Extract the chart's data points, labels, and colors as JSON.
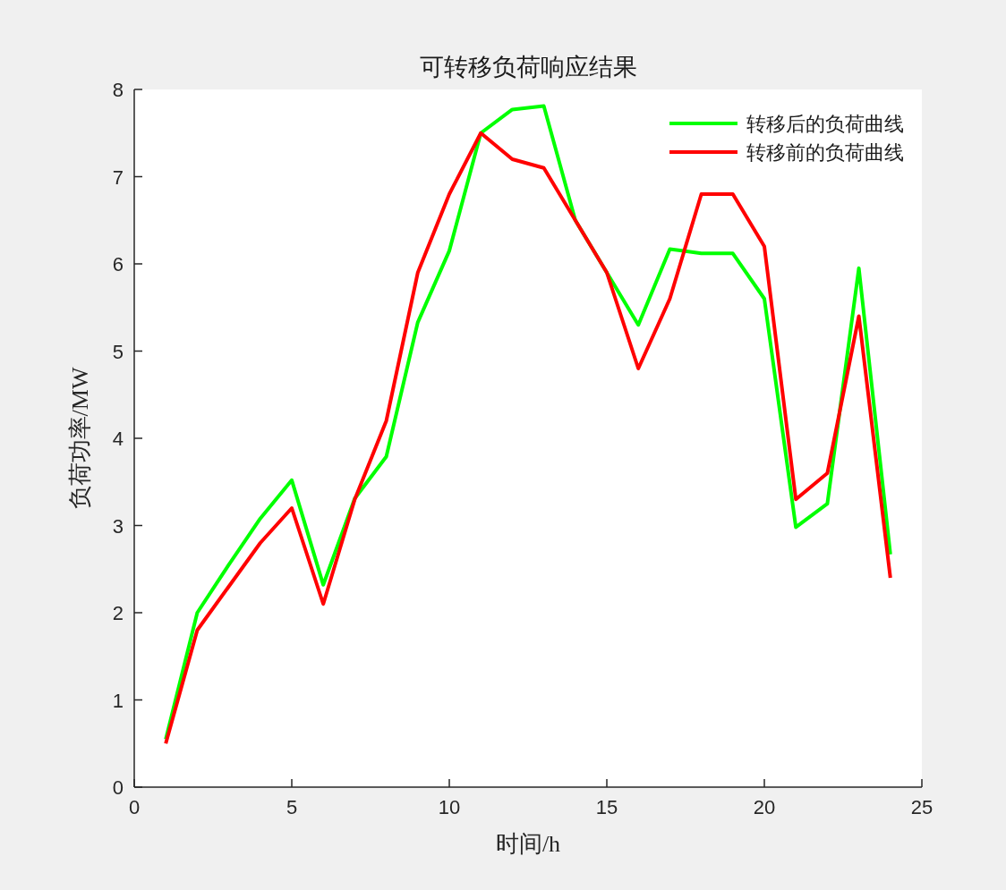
{
  "chart_data": {
    "type": "line",
    "title": "可转移负荷响应结果",
    "xlabel": "时间/h",
    "ylabel": "负荷功率/MW",
    "x": [
      1,
      2,
      3,
      4,
      5,
      6,
      7,
      8,
      9,
      10,
      11,
      12,
      13,
      14,
      15,
      16,
      17,
      18,
      19,
      20,
      21,
      22,
      23,
      24
    ],
    "series": [
      {
        "name": "转移后的负荷曲线",
        "color": "#00ff00",
        "values": [
          0.55,
          2.0,
          2.55,
          3.08,
          3.52,
          2.32,
          3.31,
          3.79,
          5.33,
          6.15,
          7.5,
          7.77,
          7.81,
          6.5,
          5.9,
          5.3,
          6.17,
          6.12,
          6.12,
          5.6,
          2.98,
          3.25,
          5.95,
          2.67
        ]
      },
      {
        "name": "转移前的负荷曲线",
        "color": "#ff0000",
        "values": [
          0.5,
          1.8,
          2.3,
          2.8,
          3.2,
          2.1,
          3.3,
          4.2,
          5.9,
          6.8,
          7.5,
          7.2,
          7.1,
          6.5,
          5.9,
          4.8,
          5.6,
          6.8,
          6.8,
          6.2,
          3.3,
          3.6,
          5.4,
          2.4
        ]
      }
    ],
    "xlim": [
      0,
      25
    ],
    "xticks": [
      0,
      5,
      10,
      15,
      20,
      25
    ],
    "ylim": [
      0,
      8
    ],
    "yticks": [
      0,
      1,
      2,
      3,
      4,
      5,
      6,
      7,
      8
    ],
    "legend": "top right",
    "line_style": "solid"
  }
}
